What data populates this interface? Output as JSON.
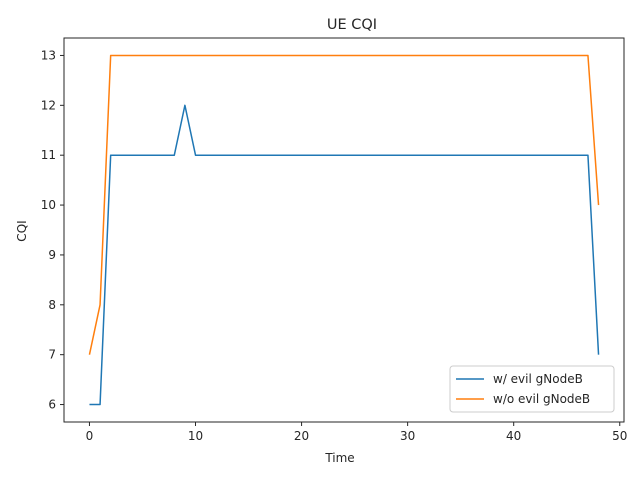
{
  "chart_data": {
    "type": "line",
    "title": "UE CQI",
    "xlabel": "Time",
    "ylabel": "CQI",
    "xlim": [
      -2.4,
      50.4
    ],
    "ylim": [
      5.65,
      13.35
    ],
    "xticks": [
      0,
      10,
      20,
      30,
      40,
      50
    ],
    "yticks": [
      6,
      7,
      8,
      9,
      10,
      11,
      12,
      13
    ],
    "grid": false,
    "legend_position": "lower-right",
    "series": [
      {
        "name": "w/ evil gNodeB",
        "color": "#1f77b4",
        "x": [
          0,
          1,
          2,
          3,
          4,
          5,
          6,
          7,
          8,
          9,
          10,
          11,
          12,
          13,
          14,
          15,
          16,
          17,
          18,
          19,
          20,
          21,
          22,
          23,
          24,
          25,
          26,
          27,
          28,
          29,
          30,
          31,
          32,
          33,
          34,
          35,
          36,
          37,
          38,
          39,
          40,
          41,
          42,
          43,
          44,
          45,
          46,
          47,
          48
        ],
        "y": [
          6,
          6,
          11,
          11,
          11,
          11,
          11,
          11,
          11,
          12,
          11,
          11,
          11,
          11,
          11,
          11,
          11,
          11,
          11,
          11,
          11,
          11,
          11,
          11,
          11,
          11,
          11,
          11,
          11,
          11,
          11,
          11,
          11,
          11,
          11,
          11,
          11,
          11,
          11,
          11,
          11,
          11,
          11,
          11,
          11,
          11,
          11,
          11,
          7
        ]
      },
      {
        "name": "w/o evil gNodeB",
        "color": "#ff7f0e",
        "x": [
          0,
          1,
          2,
          3,
          4,
          5,
          6,
          7,
          8,
          9,
          10,
          11,
          12,
          13,
          14,
          15,
          16,
          17,
          18,
          19,
          20,
          21,
          22,
          23,
          24,
          25,
          26,
          27,
          28,
          29,
          30,
          31,
          32,
          33,
          34,
          35,
          36,
          37,
          38,
          39,
          40,
          41,
          42,
          43,
          44,
          45,
          46,
          47,
          48
        ],
        "y": [
          7,
          8,
          13,
          13,
          13,
          13,
          13,
          13,
          13,
          13,
          13,
          13,
          13,
          13,
          13,
          13,
          13,
          13,
          13,
          13,
          13,
          13,
          13,
          13,
          13,
          13,
          13,
          13,
          13,
          13,
          13,
          13,
          13,
          13,
          13,
          13,
          13,
          13,
          13,
          13,
          13,
          13,
          13,
          13,
          13,
          13,
          13,
          13,
          10
        ]
      }
    ]
  }
}
